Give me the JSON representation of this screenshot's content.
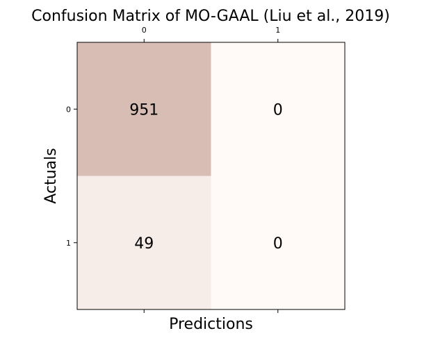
{
  "chart_data": {
    "type": "heatmap",
    "title": "Confusion Matrix of MO-GAAL (Liu et al., 2019)",
    "xlabel": "Predictions",
    "ylabel": "Actuals",
    "x_tick_labels": [
      "0",
      "1"
    ],
    "y_tick_labels": [
      "0",
      "1"
    ],
    "matrix": [
      [
        951,
        0
      ],
      [
        49,
        0
      ]
    ],
    "colormap": {
      "low": "#fffaf7",
      "high": "#d7bdb3"
    },
    "x_ticks_position": "top-and-bottom",
    "grid": false
  }
}
